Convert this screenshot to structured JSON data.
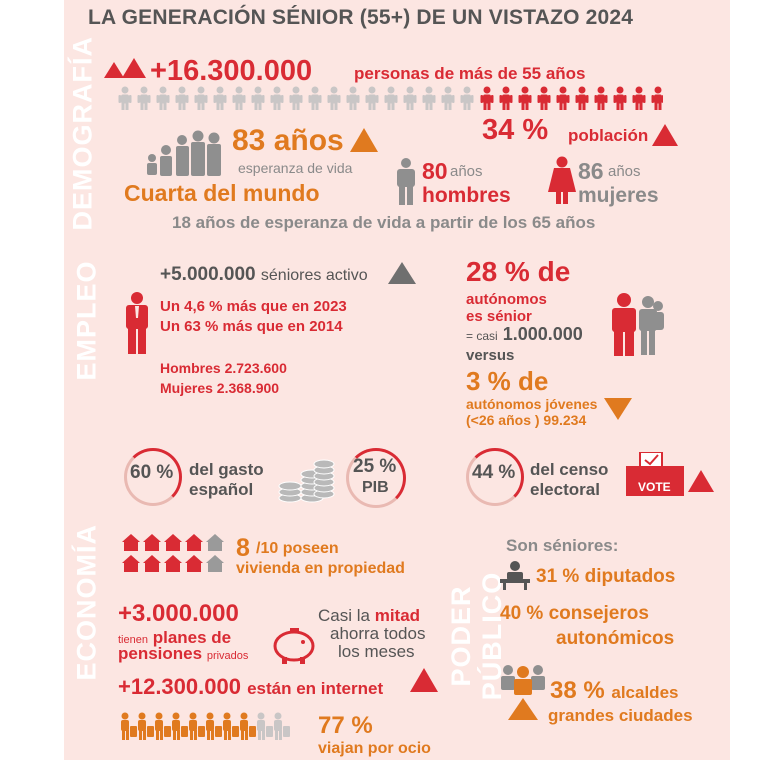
{
  "title": "LA GENERACIÓN SÉNIOR (55+) DE UN VISTAZO 2024",
  "colors": {
    "red": "#d92b34",
    "orange": "#e07a1f",
    "gray": "#8a8a8a",
    "panel": "#fce6e2"
  },
  "sections": {
    "demografia": "DEMOGRAFÍA",
    "empleo": "EMPLEO",
    "economia": "ECONOMÍA",
    "poder_publico": "PODER PÚBLICO"
  },
  "demografia": {
    "total": "+16.300.000",
    "total_label": "personas de más de 55 años",
    "esperanza": "83 años",
    "esperanza_label": "esperanza de vida",
    "cuarta_a": "Cuarta",
    "cuarta_b": "del mundo",
    "hombres_anios": "80",
    "hombres_unit": "años",
    "hombres_label": "hombres",
    "mujeres_anios": "86",
    "mujeres_unit": "años",
    "mujeres_label": "mujeres",
    "poblacion_pct": "34 %",
    "poblacion_label": "población",
    "footer": "18 años de esperanza de vida a partir de los 65 años"
  },
  "empleo": {
    "activos": "+5.000.000",
    "activos_label": "séniores activo",
    "line1": "Un 4,6 % más que en 2023",
    "line2": "Un 63 % más que en 2014",
    "hombres": "Hombres 2.723.600",
    "mujeres": "Mujeres 2.368.900",
    "autonomos_pct": "28 % de",
    "autonomos_l1": "autónomos",
    "autonomos_l2": "es sénior",
    "casi_prefix": "= casi",
    "casi_value": "1.000.000",
    "versus": "versus",
    "jovenes_pct": "3 % de",
    "jovenes_l1": "autónomos jóvenes",
    "jovenes_l2": "(<26 años ) 99.234"
  },
  "gasto": {
    "pct": "60 %",
    "l1": "del gasto",
    "l2": "español",
    "pib_pct": "25 %",
    "pib_label": "PIB",
    "censo_pct": "44 %",
    "censo_l1": "del censo",
    "censo_l2": "electoral",
    "vote": "VOTE"
  },
  "economia": {
    "vivienda_n": "8",
    "vivienda_of": "/10 poseen",
    "vivienda_label": "vivienda en propiedad",
    "planes": "+3.000.000",
    "planes_tienen": "tienen",
    "planes_l1": "planes de",
    "planes_l2": "pensiones",
    "planes_privados": "privados",
    "ahorro_a": "Casi la",
    "ahorro_b": "mitad",
    "ahorro_l2": "ahorra todos",
    "ahorro_l3": "los meses",
    "internet": "+12.300.000",
    "internet_label": "están en internet",
    "viajan_pct": "77 %",
    "viajan_label": "viajan por ocio"
  },
  "poder": {
    "header": "Son séniores:",
    "diputados": "31 % diputados",
    "consejeros_pct": "40 %",
    "consejeros_l1": "consejeros",
    "consejeros_l2": "autonómicos",
    "alcaldes_pct": "38 %",
    "alcaldes_l1": "alcaldes",
    "alcaldes_l2": "grandes ciudades"
  }
}
